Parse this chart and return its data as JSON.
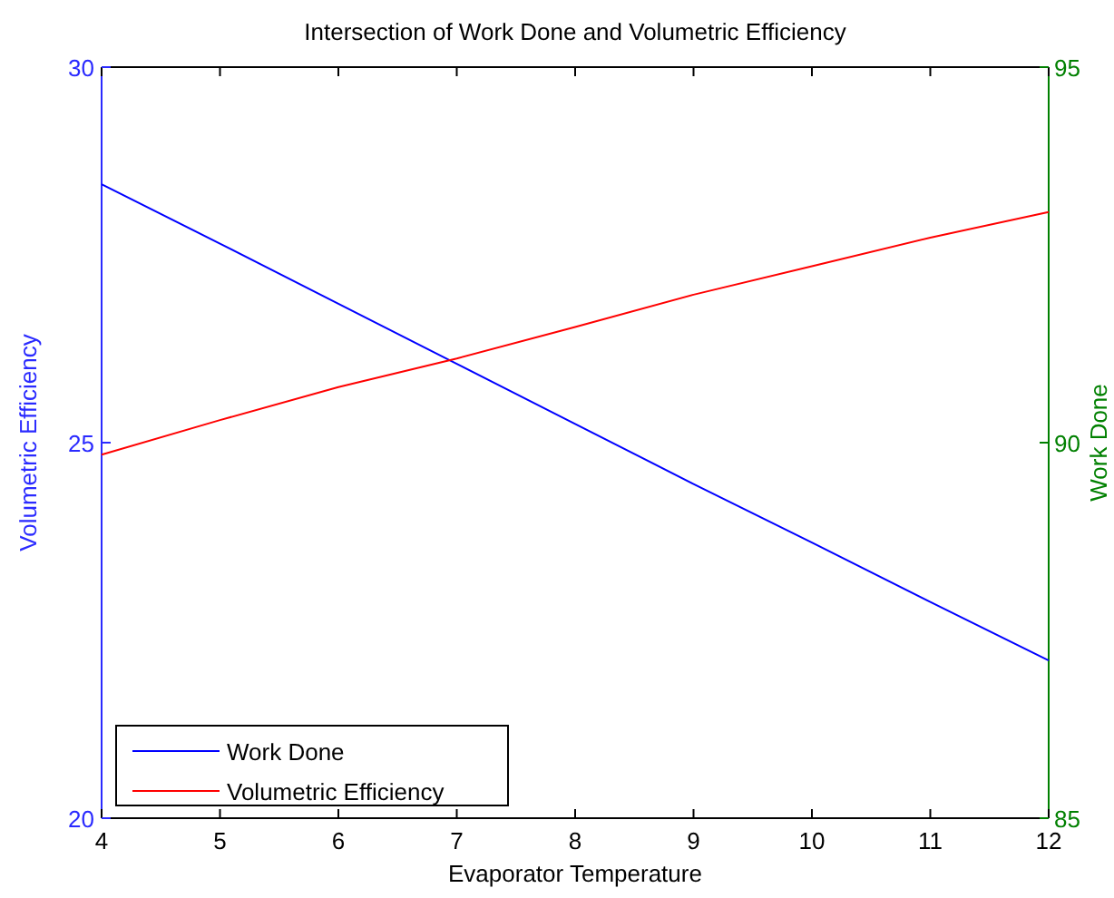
{
  "chart_data": {
    "type": "line",
    "title": "Intersection of Work Done and Volumetric Efficiency",
    "xlabel": "Evaporator Temperature",
    "ylabel": "Volumetric Efficiency",
    "y2label": "Work Done",
    "x": [
      4,
      5,
      6,
      7,
      8,
      9,
      10,
      11,
      12
    ],
    "series": [
      {
        "name": "Work Done",
        "color": "#0000ff",
        "values": [
          28.44,
          27.65,
          26.85,
          26.05,
          25.25,
          24.45,
          23.67,
          22.88,
          22.1
        ]
      },
      {
        "name": "Volumetric Efficiency",
        "color": "#ff0000",
        "axis": "y2",
        "values": [
          89.84,
          90.3,
          90.74,
          91.12,
          91.54,
          91.97,
          92.35,
          92.73,
          93.07
        ]
      }
    ],
    "xlim": [
      4,
      12
    ],
    "xticks": [
      4,
      5,
      6,
      7,
      8,
      9,
      10,
      11,
      12
    ],
    "ylim": [
      20,
      30
    ],
    "yticks": [
      20,
      25,
      30
    ],
    "y2lim": [
      85,
      95
    ],
    "y2ticks": [
      85,
      90,
      95
    ],
    "legend": "bottom left",
    "grid": false,
    "marker": "none",
    "line_style": "solid"
  }
}
